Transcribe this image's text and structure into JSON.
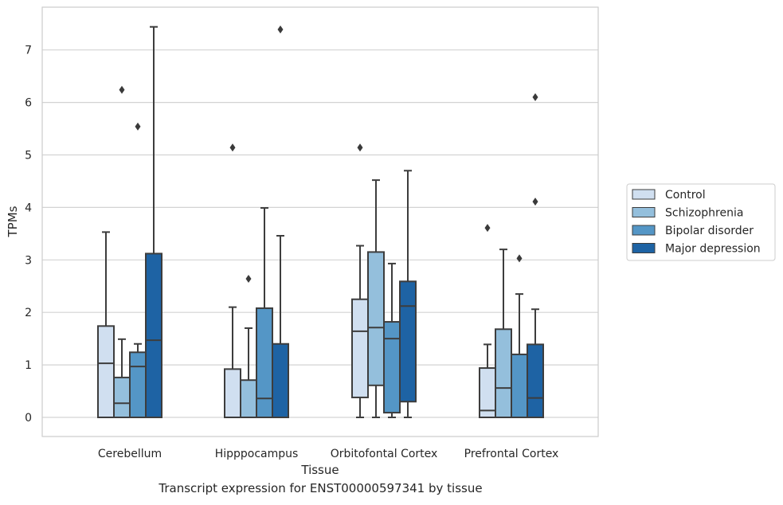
{
  "chart_data": {
    "type": "box",
    "title": "",
    "xlabel": "Tissue",
    "ylabel": "TPMs",
    "caption": "Transcript expression for ENST00000597341 by tissue",
    "ylim": [
      -0.35,
      7.75
    ],
    "yticks": [
      0,
      1,
      2,
      3,
      4,
      5,
      6,
      7
    ],
    "grid": "horizontal",
    "legend_position": "right",
    "categories": [
      "Cerebellum",
      "Hipppocampus",
      "Orbitofontal Cortex",
      "Prefrontal Cortex"
    ],
    "series": [
      {
        "name": "Control",
        "color": "#d0dff0",
        "boxes": [
          {
            "q1": 0.0,
            "median": 1.03,
            "q3": 1.74,
            "whislo": 0.0,
            "whishi": 3.53,
            "fliers": []
          },
          {
            "q1": 0.0,
            "median": 0.0,
            "q3": 0.92,
            "whislo": 0.0,
            "whishi": 2.1,
            "fliers": [
              5.14
            ]
          },
          {
            "q1": 0.38,
            "median": 1.64,
            "q3": 2.25,
            "whislo": 0.0,
            "whishi": 3.27,
            "fliers": [
              5.14
            ]
          },
          {
            "q1": 0.0,
            "median": 0.13,
            "q3": 0.94,
            "whislo": 0.0,
            "whishi": 1.39,
            "fliers": [
              3.61
            ]
          }
        ]
      },
      {
        "name": "Schizophrenia",
        "color": "#94bfdc",
        "boxes": [
          {
            "q1": 0.0,
            "median": 0.27,
            "q3": 0.76,
            "whislo": 0.0,
            "whishi": 1.49,
            "fliers": [
              6.24
            ]
          },
          {
            "q1": 0.0,
            "median": 0.0,
            "q3": 0.71,
            "whislo": 0.0,
            "whishi": 1.7,
            "fliers": [
              2.64
            ]
          },
          {
            "q1": 0.61,
            "median": 1.71,
            "q3": 3.15,
            "whislo": 0.0,
            "whishi": 4.52,
            "fliers": []
          },
          {
            "q1": 0.0,
            "median": 0.56,
            "q3": 1.68,
            "whislo": 0.0,
            "whishi": 3.2,
            "fliers": []
          }
        ]
      },
      {
        "name": "Bipolar disorder",
        "color": "#5496c6",
        "boxes": [
          {
            "q1": 0.0,
            "median": 0.97,
            "q3": 1.24,
            "whislo": 0.0,
            "whishi": 1.4,
            "fliers": [
              5.54
            ]
          },
          {
            "q1": 0.0,
            "median": 0.36,
            "q3": 2.08,
            "whislo": 0.0,
            "whishi": 3.99,
            "fliers": []
          },
          {
            "q1": 0.09,
            "median": 1.5,
            "q3": 1.82,
            "whislo": 0.0,
            "whishi": 2.93,
            "fliers": []
          },
          {
            "q1": 0.0,
            "median": 0.0,
            "q3": 1.2,
            "whislo": 0.0,
            "whishi": 2.35,
            "fliers": [
              3.03
            ]
          }
        ]
      },
      {
        "name": "Major depression",
        "color": "#1e63a4",
        "boxes": [
          {
            "q1": 0.0,
            "median": 1.47,
            "q3": 3.12,
            "whislo": 0.0,
            "whishi": 7.44,
            "fliers": []
          },
          {
            "q1": 0.0,
            "median": 0.0,
            "q3": 1.4,
            "whislo": 0.0,
            "whishi": 3.46,
            "fliers": [
              7.39
            ]
          },
          {
            "q1": 0.3,
            "median": 2.12,
            "q3": 2.59,
            "whislo": 0.0,
            "whishi": 4.7,
            "fliers": []
          },
          {
            "q1": 0.0,
            "median": 0.37,
            "q3": 1.39,
            "whislo": 0.0,
            "whishi": 2.06,
            "fliers": [
              4.11,
              6.1
            ]
          }
        ]
      }
    ]
  }
}
